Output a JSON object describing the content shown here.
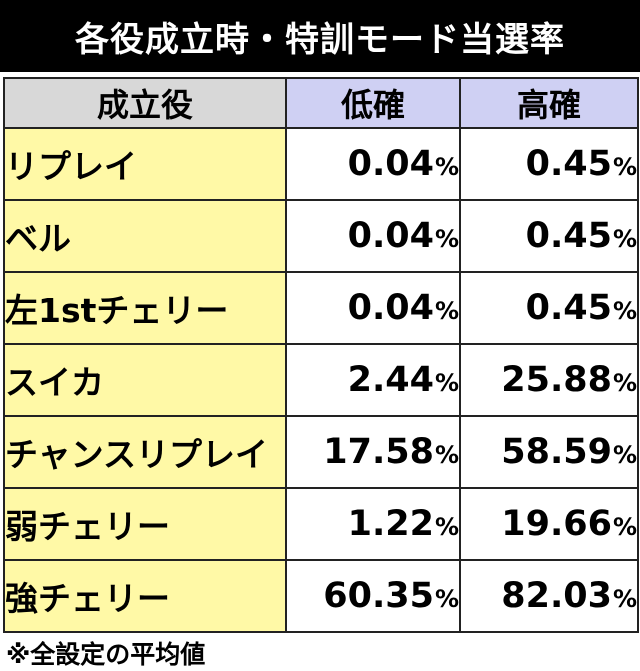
{
  "title": "各役成立時・特訓モード当選率",
  "table": {
    "headers": {
      "role": "成立役",
      "low": "低確",
      "high": "高確"
    },
    "unit": "%",
    "rows": [
      {
        "role": "リプレイ",
        "low": "0.04",
        "high": "0.45"
      },
      {
        "role": "ベル",
        "low": "0.04",
        "high": "0.45"
      },
      {
        "role": "左1stチェリー",
        "low": "0.04",
        "high": "0.45"
      },
      {
        "role": "スイカ",
        "low": "2.44",
        "high": "25.88"
      },
      {
        "role": "チャンスリプレイ",
        "low": "17.58",
        "high": "58.59"
      },
      {
        "role": "弱チェリー",
        "low": "1.22",
        "high": "19.66"
      },
      {
        "role": "強チェリー",
        "low": "60.35",
        "high": "82.03"
      }
    ]
  },
  "footnote": "※全設定の平均値",
  "colors": {
    "title_bg": "#000000",
    "role_header_bg": "#d8d8d8",
    "rate_header_bg": "#cfd0f3",
    "role_cell_bg": "#fff9a6",
    "value_cell_bg": "#ffffff"
  }
}
